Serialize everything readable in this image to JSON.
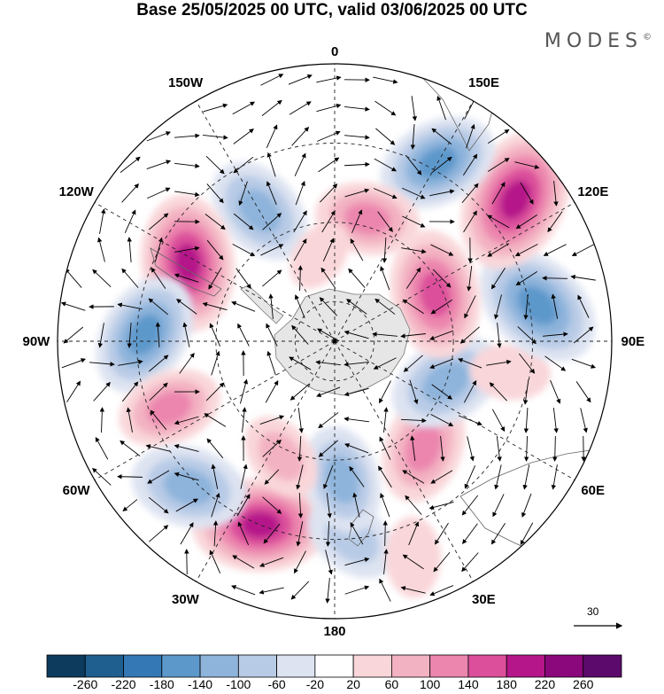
{
  "title": "Base 25/05/2025 00 UTC, valid 03/06/2025 00 UTC",
  "brand": "MODES",
  "brand_mark": "©",
  "projection": "south-polar-stereographic",
  "longitude_labels": [
    {
      "text": "0",
      "lon": 0
    },
    {
      "text": "30E",
      "lon": 30
    },
    {
      "text": "60E",
      "lon": 60
    },
    {
      "text": "90E",
      "lon": 90
    },
    {
      "text": "120E",
      "lon": 120
    },
    {
      "text": "150E",
      "lon": 150
    },
    {
      "text": "180",
      "lon": 180
    },
    {
      "text": "150W",
      "lon": -150
    },
    {
      "text": "120W",
      "lon": -120
    },
    {
      "text": "90W",
      "lon": -90
    },
    {
      "text": "60W",
      "lon": -60
    },
    {
      "text": "30W",
      "lon": -30
    }
  ],
  "reference_vector": {
    "value": "30"
  },
  "colorbar": {
    "ticks": [
      "-260",
      "-220",
      "-180",
      "-140",
      "-100",
      "-60",
      "-20",
      "20",
      "60",
      "100",
      "140",
      "180",
      "220",
      "260"
    ],
    "colors": [
      "#0d3b5e",
      "#1e5f8f",
      "#3479b5",
      "#5d98cb",
      "#8eb4db",
      "#b8cbe6",
      "#dde3f1",
      "#ffffff",
      "#f9d6d9",
      "#f3b2c2",
      "#ec86ae",
      "#dc4f9b",
      "#b5178a",
      "#8a087c",
      "#5c0a6b"
    ]
  },
  "anomalies": [
    {
      "lon": -22,
      "lat": -40,
      "value": 200
    },
    {
      "lon": 5,
      "lat": -40,
      "value": -100
    },
    {
      "lon": 3,
      "lat": -55,
      "value": -130
    },
    {
      "lon": 40,
      "lat": -55,
      "value": 140
    },
    {
      "lon": 70,
      "lat": -60,
      "value": -150
    },
    {
      "lon": 80,
      "lat": -45,
      "value": 60
    },
    {
      "lon": 100,
      "lat": -38,
      "value": -190
    },
    {
      "lon": 115,
      "lat": -62,
      "value": 180
    },
    {
      "lon": 128,
      "lat": -32,
      "value": 220
    },
    {
      "lon": 150,
      "lat": -38,
      "value": -160
    },
    {
      "lon": 165,
      "lat": -58,
      "value": 120
    },
    {
      "lon": -150,
      "lat": -52,
      "value": -140
    },
    {
      "lon": -118,
      "lat": -48,
      "value": 200
    },
    {
      "lon": -92,
      "lat": -42,
      "value": -170
    },
    {
      "lon": -68,
      "lat": -45,
      "value": 120
    },
    {
      "lon": -45,
      "lat": -38,
      "value": -150
    },
    {
      "lon": -25,
      "lat": -58,
      "value": 80
    },
    {
      "lon": 20,
      "lat": -32,
      "value": 60
    },
    {
      "lon": -170,
      "lat": -68,
      "value": 40
    }
  ]
}
